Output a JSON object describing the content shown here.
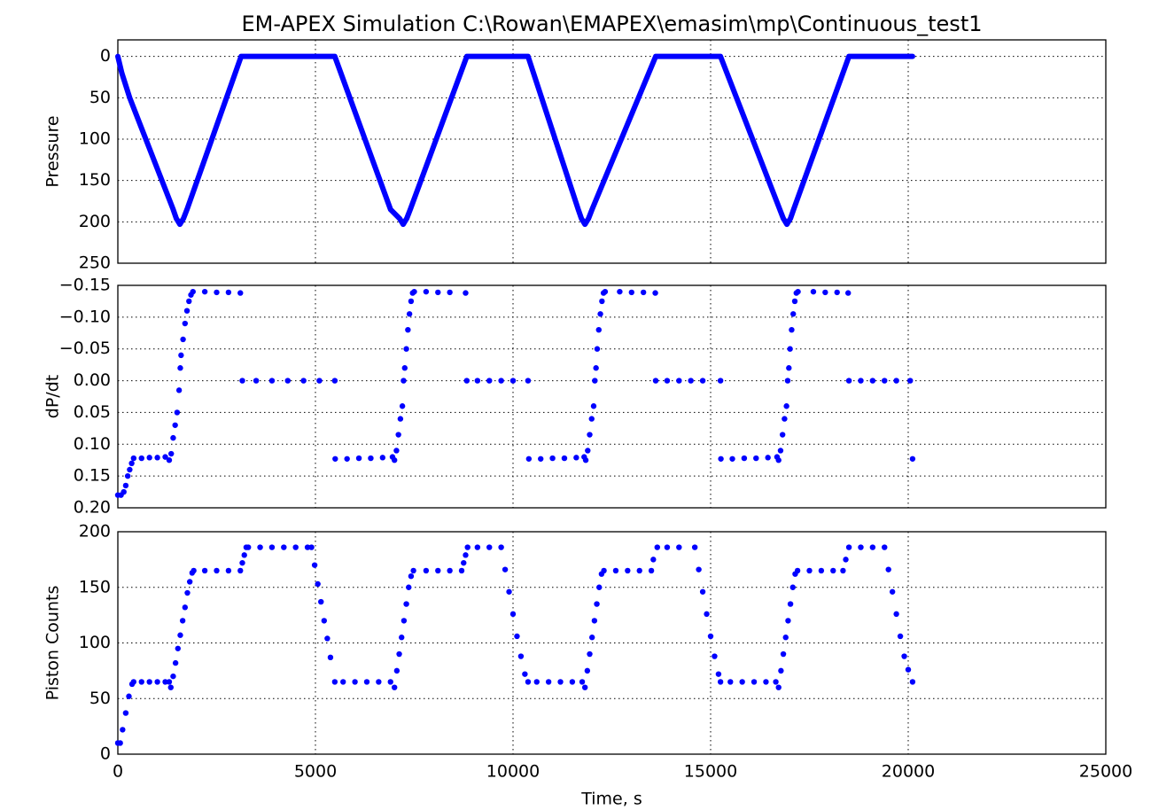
{
  "chart_data": [
    {
      "type": "line",
      "title": "EM-APEX Simulation C:\\Rowan\\EMAPEX\\emasim\\mp\\Continuous_test1",
      "ylabel": "Pressure",
      "color": "#0000ff",
      "grid": true,
      "xlim": [
        0,
        25000
      ],
      "xticks": [
        0,
        5000,
        10000,
        15000,
        20000,
        25000
      ],
      "ylim": [
        250,
        -20
      ],
      "yticks": [
        0,
        50,
        100,
        150,
        200,
        250
      ],
      "x": [
        0,
        100,
        300,
        1400,
        1480,
        1570,
        1660,
        1750,
        3120,
        5490,
        6900,
        7130,
        7220,
        7310,
        7400,
        8830,
        10380,
        11650,
        11730,
        11820,
        11910,
        12000,
        13610,
        15250,
        16750,
        16840,
        16930,
        17020,
        17100,
        18500,
        20110
      ],
      "values": [
        0,
        20,
        50,
        185,
        196,
        203,
        196,
        185,
        0,
        0,
        185,
        196,
        203,
        196,
        185,
        0,
        0,
        185,
        196,
        203,
        196,
        185,
        0,
        0,
        185,
        196,
        203,
        196,
        185,
        0,
        0
      ]
    },
    {
      "type": "scatter",
      "ylabel": "dP/dt",
      "color": "#0000ff",
      "grid": true,
      "xlim": [
        0,
        25000
      ],
      "xticks": [
        0,
        5000,
        10000,
        15000,
        20000,
        25000
      ],
      "ylim": [
        {
          "value": 0.2,
          "label": "0.20"
        },
        {
          "value": -0.15,
          "label": "−0.15"
        }
      ],
      "yticks": [
        {
          "value": -0.15,
          "label": "−0.15"
        },
        {
          "value": -0.1,
          "label": "−0.10"
        },
        {
          "value": -0.05,
          "label": "−0.05"
        },
        {
          "value": 0,
          "label": "0.00"
        },
        0.05,
        {
          "value": 0.1,
          "label": "0.10"
        },
        0.15,
        {
          "value": 0.2,
          "label": "0.20"
        }
      ],
      "x": [
        0,
        80,
        150,
        200,
        250,
        300,
        350,
        400,
        600,
        800,
        1000,
        1200,
        1300,
        1350,
        1400,
        1450,
        1500,
        1550,
        1580,
        1600,
        1650,
        1700,
        1750,
        1800,
        1850,
        1900,
        2200,
        2500,
        2800,
        3100,
        3150,
        3500,
        3900,
        4300,
        4700,
        5100,
        5490,
        5500,
        5800,
        6100,
        6400,
        6700,
        6950,
        7000,
        7050,
        7100,
        7150,
        7200,
        7230,
        7260,
        7300,
        7340,
        7380,
        7420,
        7460,
        7500,
        7800,
        8100,
        8400,
        8800,
        8830,
        9100,
        9400,
        9700,
        10000,
        10380,
        10400,
        10700,
        11000,
        11300,
        11600,
        11800,
        11840,
        11890,
        11940,
        11990,
        12040,
        12070,
        12100,
        12130,
        12170,
        12210,
        12250,
        12290,
        12330,
        12700,
        13000,
        13300,
        13600,
        13610,
        13900,
        14200,
        14500,
        14800,
        15250,
        15260,
        15550,
        15850,
        16150,
        16450,
        16680,
        16720,
        16770,
        16820,
        16870,
        16920,
        16950,
        16980,
        17010,
        17050,
        17090,
        17130,
        17170,
        17210,
        17600,
        17900,
        18200,
        18480,
        18500,
        18800,
        19100,
        19400,
        19700,
        20050,
        20110
      ],
      "values": [
        0.18,
        0.18,
        0.175,
        0.165,
        0.15,
        0.14,
        0.13,
        0.122,
        0.122,
        0.121,
        0.121,
        0.12,
        0.125,
        0.115,
        0.09,
        0.07,
        0.05,
        0.015,
        -0.02,
        -0.04,
        -0.065,
        -0.09,
        -0.11,
        -0.125,
        -0.135,
        -0.14,
        -0.14,
        -0.139,
        -0.139,
        -0.138,
        0,
        0,
        0,
        0,
        0,
        0,
        0,
        0.123,
        0.123,
        0.122,
        0.122,
        0.121,
        0.12,
        0.125,
        0.11,
        0.085,
        0.06,
        0.04,
        0,
        -0.02,
        -0.05,
        -0.08,
        -0.105,
        -0.125,
        -0.138,
        -0.14,
        -0.14,
        -0.139,
        -0.139,
        -0.138,
        0,
        0,
        0,
        0,
        0,
        0,
        0.123,
        0.123,
        0.122,
        0.122,
        0.121,
        0.12,
        0.125,
        0.11,
        0.085,
        0.06,
        0.04,
        0,
        -0.02,
        -0.05,
        -0.08,
        -0.105,
        -0.125,
        -0.138,
        -0.14,
        -0.14,
        -0.139,
        -0.139,
        -0.138,
        0,
        0,
        0,
        0,
        0,
        0,
        0.123,
        0.123,
        0.122,
        0.122,
        0.121,
        0.12,
        0.125,
        0.11,
        0.085,
        0.06,
        0.04,
        0,
        -0.02,
        -0.05,
        -0.08,
        -0.105,
        -0.125,
        -0.138,
        -0.14,
        -0.14,
        -0.139,
        -0.139,
        -0.138,
        0,
        0,
        0,
        0,
        0,
        0,
        0.123
      ]
    },
    {
      "type": "scatter",
      "ylabel": "Piston Counts",
      "xlabel": "Time, s",
      "color": "#0000ff",
      "grid": true,
      "xlim": [
        0,
        25000
      ],
      "xticks": [
        0,
        5000,
        10000,
        15000,
        20000,
        25000
      ],
      "ylim": [
        0,
        200
      ],
      "yticks": [
        0,
        50,
        100,
        150,
        200
      ],
      "x": [
        0,
        60,
        120,
        200,
        280,
        360,
        400,
        600,
        800,
        1000,
        1200,
        1300,
        1340,
        1400,
        1460,
        1520,
        1580,
        1640,
        1700,
        1760,
        1820,
        1880,
        1920,
        2200,
        2500,
        2800,
        3100,
        3150,
        3200,
        3250,
        3300,
        3600,
        3900,
        4200,
        4500,
        4800,
        4900,
        4980,
        5060,
        5140,
        5220,
        5300,
        5380,
        5490,
        5700,
        6000,
        6300,
        6600,
        6900,
        7000,
        7060,
        7120,
        7180,
        7240,
        7300,
        7360,
        7420,
        7480,
        7800,
        8100,
        8400,
        8700,
        8750,
        8800,
        8850,
        9100,
        9400,
        9700,
        9800,
        9900,
        10000,
        10100,
        10200,
        10300,
        10380,
        10600,
        10900,
        11200,
        11500,
        11750,
        11820,
        11880,
        11940,
        12000,
        12060,
        12120,
        12180,
        12240,
        12300,
        12600,
        12900,
        13200,
        13500,
        13550,
        13650,
        13900,
        14200,
        14600,
        14700,
        14800,
        14900,
        15000,
        15100,
        15200,
        15250,
        15500,
        15800,
        16100,
        16400,
        16650,
        16720,
        16780,
        16840,
        16900,
        16960,
        17020,
        17080,
        17140,
        17200,
        17500,
        17800,
        18100,
        18350,
        18420,
        18500,
        18800,
        19100,
        19400,
        19500,
        19600,
        19700,
        19800,
        19900,
        20000,
        20110
      ],
      "values": [
        10,
        10,
        22,
        37,
        52,
        63,
        65,
        65,
        65,
        65,
        65,
        65,
        60,
        70,
        82,
        95,
        107,
        120,
        132,
        145,
        155,
        163,
        165,
        165,
        165,
        165,
        165,
        172,
        179,
        186,
        186,
        186,
        186,
        186,
        186,
        186,
        186,
        170,
        153,
        137,
        120,
        104,
        87,
        65,
        65,
        65,
        65,
        65,
        65,
        60,
        75,
        90,
        105,
        120,
        135,
        150,
        160,
        165,
        165,
        165,
        165,
        165,
        172,
        179,
        186,
        186,
        186,
        186,
        166,
        146,
        126,
        106,
        88,
        72,
        65,
        65,
        65,
        65,
        65,
        65,
        60,
        75,
        90,
        105,
        120,
        135,
        150,
        162,
        165,
        165,
        165,
        165,
        165,
        175,
        186,
        186,
        186,
        186,
        166,
        146,
        126,
        106,
        88,
        72,
        65,
        65,
        65,
        65,
        65,
        65,
        60,
        75,
        90,
        105,
        120,
        135,
        150,
        162,
        165,
        165,
        165,
        165,
        165,
        175,
        186,
        186,
        186,
        186,
        166,
        146,
        126,
        106,
        88,
        76,
        65
      ]
    }
  ]
}
